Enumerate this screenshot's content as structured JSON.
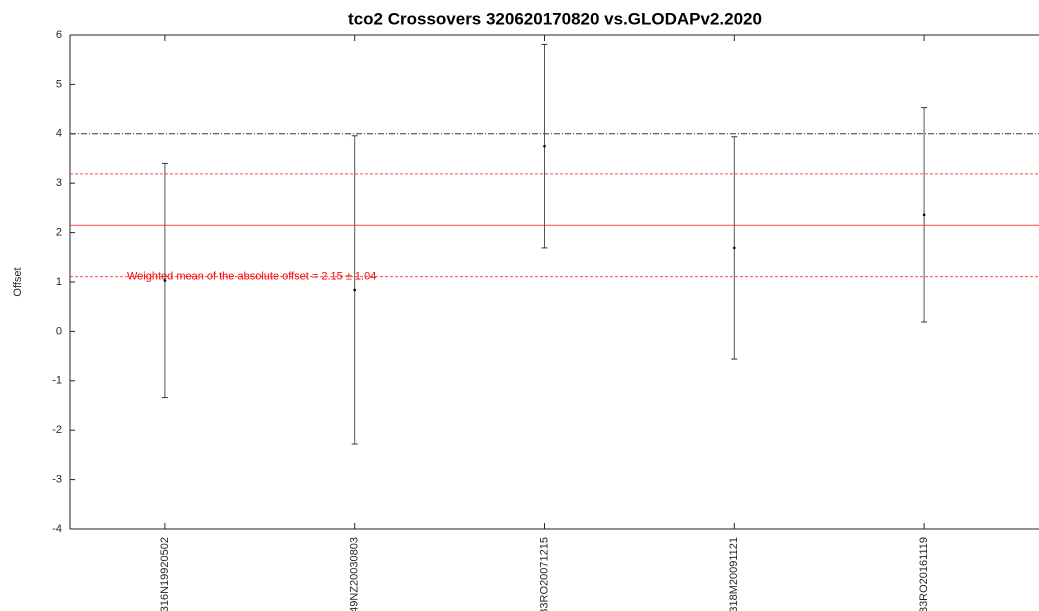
{
  "chart_data": {
    "type": "errorbar",
    "title": "tco2 Crossovers 320620170820 vs.GLODAPv2.2020",
    "y_label": "Offset",
    "categories": [
      "316N19920502",
      "49NZ20030803",
      "33RO20071215",
      "318M20091121",
      "33RO20161119"
    ],
    "values": [
      1.03,
      0.84,
      3.75,
      1.69,
      2.36
    ],
    "errors": [
      2.37,
      3.12,
      2.06,
      2.25,
      2.17
    ],
    "color": "#000000",
    "ylim": [
      -4,
      6
    ],
    "yticks": [
      -4,
      -3,
      -2,
      -1,
      0,
      1,
      2,
      3,
      4,
      5,
      6
    ],
    "threshold": 4,
    "mean": 2.15,
    "std": 1.04,
    "mean_color": "#ff0000",
    "annotation": "Weighted mean of the absolute offset = 2.15 ± 1.04"
  }
}
